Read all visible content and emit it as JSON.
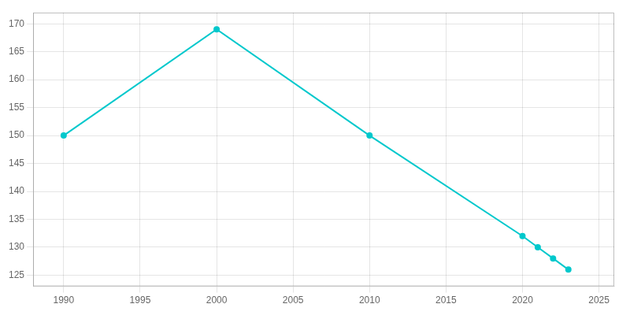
{
  "chart_data": {
    "type": "line",
    "x": [
      1990,
      2000,
      2010,
      2020,
      2021,
      2022,
      2023
    ],
    "values": [
      150,
      169,
      150,
      132,
      130,
      128,
      126
    ],
    "color": "#00c8cc",
    "marker": "circle",
    "xlim": [
      1988,
      2026
    ],
    "xticks": [
      1990,
      1995,
      2000,
      2005,
      2010,
      2015,
      2020,
      2025
    ],
    "ylim": [
      123,
      172
    ],
    "yticks": [
      125,
      130,
      135,
      140,
      145,
      150,
      155,
      160,
      165,
      170
    ],
    "grid": true
  }
}
